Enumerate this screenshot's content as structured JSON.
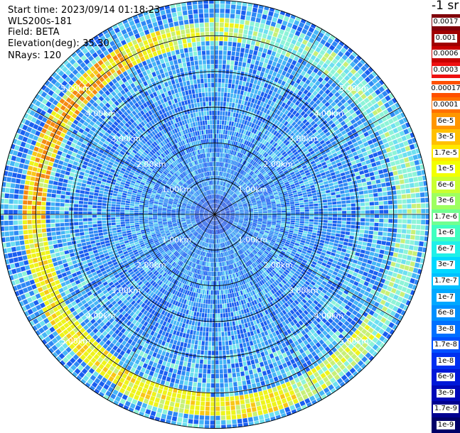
{
  "header": {
    "start_time": "Start time: 2023/09/14 01:18:23",
    "device": "WLS200s-181",
    "field": "Field: BETA",
    "elevation": "Elevation(deg): 35.30",
    "nrays": "NRays: 120"
  },
  "colorbar": {
    "unit": "-1 sr",
    "entries": [
      {
        "label": "0.0017",
        "color": "#80000a"
      },
      {
        "label": "0.001",
        "color": "#a00000"
      },
      {
        "label": "0.0006",
        "color": "#c80000"
      },
      {
        "label": "0.0003",
        "color": "#ee1010"
      },
      {
        "label": "0.00017",
        "color": "#ff5000"
      },
      {
        "label": "0.0001",
        "color": "#ff7000"
      },
      {
        "label": "6e-5",
        "color": "#ff9600"
      },
      {
        "label": "3e-5",
        "color": "#ffc000"
      },
      {
        "label": "1.7e-5",
        "color": "#ffe800"
      },
      {
        "label": "1e-5",
        "color": "#f2ff00"
      },
      {
        "label": "6e-6",
        "color": "#caff30"
      },
      {
        "label": "3e-6",
        "color": "#9eff60"
      },
      {
        "label": "1.7e-6",
        "color": "#70ff90"
      },
      {
        "label": "1e-6",
        "color": "#40ffc0"
      },
      {
        "label": "6e-7",
        "color": "#20f0e8"
      },
      {
        "label": "3e-7",
        "color": "#00d8ff"
      },
      {
        "label": "1.7e-7",
        "color": "#00c0ff"
      },
      {
        "label": "1e-7",
        "color": "#00a8ff"
      },
      {
        "label": "6e-8",
        "color": "#0090ff"
      },
      {
        "label": "3e-8",
        "color": "#0070ff"
      },
      {
        "label": "1.7e-8",
        "color": "#0050ff"
      },
      {
        "label": "1e-8",
        "color": "#0030f0"
      },
      {
        "label": "6e-9",
        "color": "#0018d8"
      },
      {
        "label": "3e-9",
        "color": "#0008b8"
      },
      {
        "label": "1.7e-9",
        "color": "#000090"
      },
      {
        "label": "1e-9",
        "color": "#000068"
      }
    ]
  },
  "chart_data": {
    "type": "heatmap",
    "projection": "polar-ppi",
    "field": "BETA",
    "elevation_deg": 35.3,
    "n_rays": 120,
    "max_range_km": 6.0,
    "range_rings_km": [
      1,
      2,
      3,
      4,
      5
    ],
    "ring_labels": [
      "1.00km",
      "2.00km",
      "3.00km",
      "4.00km",
      "5.00km"
    ],
    "spokes_every_deg": 30,
    "feature": "aerosol layer band of elevated backscatter (~1.7e-6 to 1.7e-5) near 5.2–5.8 km range, strongest toward the south and northwest",
    "background_range": [
      "1e-8",
      "1e-6"
    ]
  }
}
